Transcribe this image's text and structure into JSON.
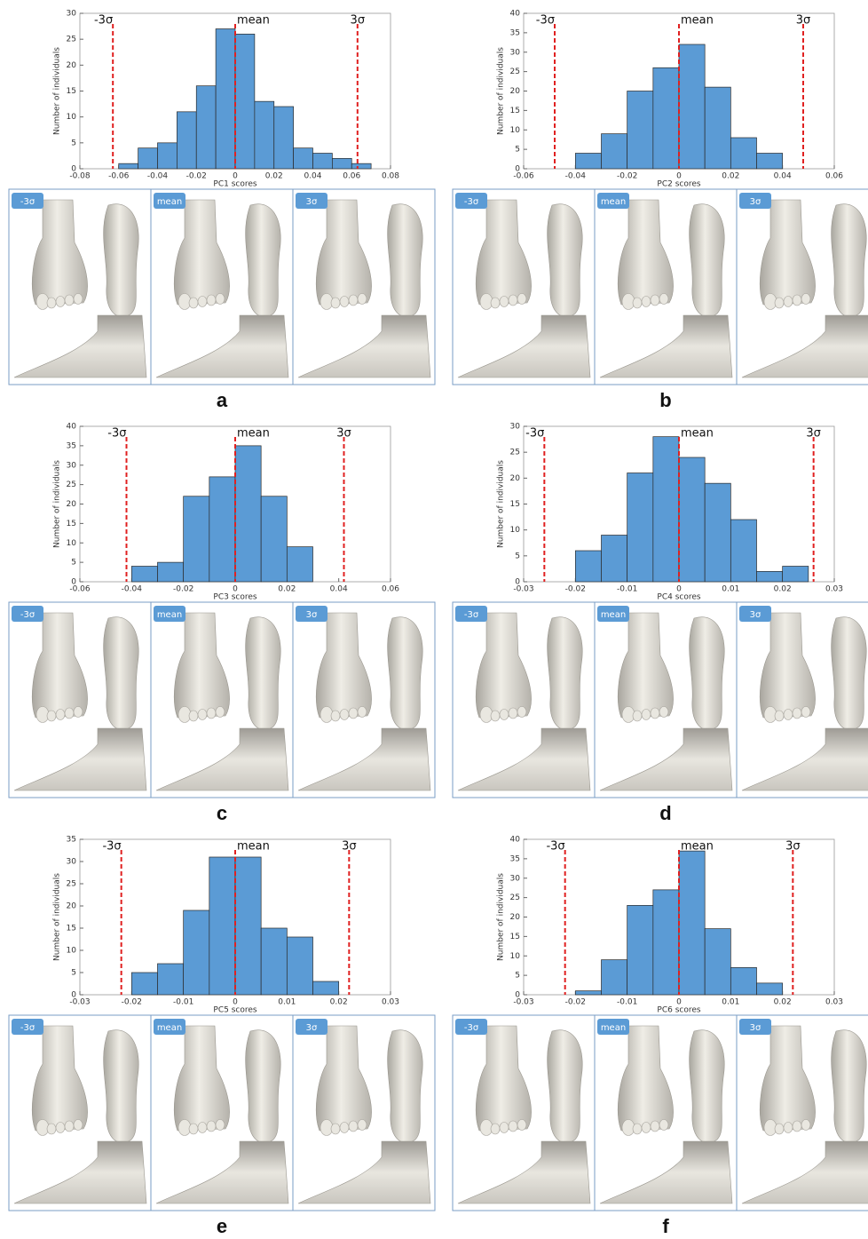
{
  "chart_data": [
    {
      "type": "histogram",
      "panel": "a",
      "x_label": "PC1 scores",
      "y_label": "Number of individuals",
      "color": "#5b9bd5",
      "bins": [
        -0.06,
        -0.05,
        -0.04,
        -0.03,
        -0.02,
        -0.01,
        0,
        0.01,
        0.02,
        0.03,
        0.04,
        0.05,
        0.06,
        0.07
      ],
      "values": [
        1,
        4,
        5,
        11,
        16,
        27,
        26,
        13,
        12,
        4,
        3,
        2,
        1
      ],
      "xlim": [
        -0.08,
        0.08
      ],
      "xticks": [
        -0.08,
        -0.06,
        -0.04,
        -0.02,
        0,
        0.02,
        0.04,
        0.06,
        0.08
      ],
      "ylim": [
        0,
        30
      ],
      "yticks": [
        0,
        5,
        10,
        15,
        20,
        25,
        30
      ],
      "vlines": [
        {
          "x": -0.063,
          "label": "-3σ"
        },
        {
          "x": 0,
          "label": "mean"
        },
        {
          "x": 0.063,
          "label": "3σ"
        }
      ],
      "shape_labels": [
        "-3σ",
        "mean",
        "3σ"
      ]
    },
    {
      "type": "histogram",
      "panel": "b",
      "x_label": "PC2 scores",
      "y_label": "Number of individuals",
      "color": "#5b9bd5",
      "bins": [
        -0.04,
        -0.03,
        -0.02,
        -0.01,
        0,
        0.01,
        0.02,
        0.03,
        0.04
      ],
      "values": [
        4,
        9,
        20,
        26,
        32,
        21,
        8,
        4
      ],
      "xlim": [
        -0.06,
        0.06
      ],
      "xticks": [
        -0.06,
        -0.04,
        -0.02,
        0,
        0.02,
        0.04,
        0.06
      ],
      "ylim": [
        0,
        40
      ],
      "yticks": [
        0,
        5,
        10,
        15,
        20,
        25,
        30,
        35,
        40
      ],
      "vlines": [
        {
          "x": -0.048,
          "label": "-3σ"
        },
        {
          "x": 0,
          "label": "mean"
        },
        {
          "x": 0.048,
          "label": "3σ"
        }
      ],
      "shape_labels": [
        "-3σ",
        "mean",
        "3σ"
      ]
    },
    {
      "type": "histogram",
      "panel": "c",
      "x_label": "PC3 scores",
      "y_label": "Number of individuals",
      "color": "#5b9bd5",
      "bins": [
        -0.04,
        -0.03,
        -0.02,
        -0.01,
        0,
        0.01,
        0.02,
        0.03
      ],
      "values": [
        4,
        5,
        22,
        27,
        35,
        22,
        9
      ],
      "xlim": [
        -0.06,
        0.06
      ],
      "xticks": [
        -0.06,
        -0.04,
        -0.02,
        0,
        0.02,
        0.04,
        0.06
      ],
      "ylim": [
        0,
        40
      ],
      "yticks": [
        0,
        5,
        10,
        15,
        20,
        25,
        30,
        35,
        40
      ],
      "vlines": [
        {
          "x": -0.042,
          "label": "-3σ"
        },
        {
          "x": 0,
          "label": "mean"
        },
        {
          "x": 0.042,
          "label": "3σ"
        }
      ],
      "shape_labels": [
        "-3σ",
        "mean",
        "3σ"
      ]
    },
    {
      "type": "histogram",
      "panel": "d",
      "x_label": "PC4 scores",
      "y_label": "Number of individuals",
      "color": "#5b9bd5",
      "bins": [
        -0.02,
        -0.015,
        -0.01,
        -0.005,
        0,
        0.005,
        0.01,
        0.015,
        0.02,
        0.025
      ],
      "values": [
        6,
        9,
        21,
        28,
        24,
        19,
        12,
        2,
        3
      ],
      "xlim": [
        -0.03,
        0.03
      ],
      "xticks": [
        -0.03,
        -0.02,
        -0.01,
        0,
        0.01,
        0.02,
        0.03
      ],
      "ylim": [
        0,
        30
      ],
      "yticks": [
        0,
        5,
        10,
        15,
        20,
        25,
        30
      ],
      "vlines": [
        {
          "x": -0.026,
          "label": "-3σ"
        },
        {
          "x": 0,
          "label": "mean"
        },
        {
          "x": 0.026,
          "label": "3σ"
        }
      ],
      "shape_labels": [
        "-3σ",
        "mean",
        "3σ"
      ]
    },
    {
      "type": "histogram",
      "panel": "e",
      "x_label": "PC5 scores",
      "y_label": "Number of individuals",
      "color": "#5b9bd5",
      "bins": [
        -0.02,
        -0.015,
        -0.01,
        -0.005,
        0,
        0.005,
        0.01,
        0.015,
        0.02
      ],
      "values": [
        5,
        7,
        19,
        31,
        31,
        15,
        13,
        3
      ],
      "xlim": [
        -0.03,
        0.03
      ],
      "xticks": [
        -0.03,
        -0.02,
        -0.01,
        0,
        0.01,
        0.02,
        0.03
      ],
      "ylim": [
        0,
        35
      ],
      "yticks": [
        0,
        5,
        10,
        15,
        20,
        25,
        30,
        35
      ],
      "vlines": [
        {
          "x": -0.022,
          "label": "-3σ"
        },
        {
          "x": 0,
          "label": "mean"
        },
        {
          "x": 0.022,
          "label": "3σ"
        }
      ],
      "shape_labels": [
        "-3σ",
        "mean",
        "3σ"
      ]
    },
    {
      "type": "histogram",
      "panel": "f",
      "x_label": "PC6 scores",
      "y_label": "Number of individuals",
      "color": "#5b9bd5",
      "bins": [
        -0.02,
        -0.015,
        -0.01,
        -0.005,
        0,
        0.005,
        0.01,
        0.015,
        0.02
      ],
      "values": [
        1,
        9,
        23,
        27,
        37,
        17,
        7,
        3
      ],
      "xlim": [
        -0.03,
        0.03
      ],
      "xticks": [
        -0.03,
        -0.02,
        -0.01,
        0,
        0.01,
        0.02,
        0.03
      ],
      "ylim": [
        0,
        40
      ],
      "yticks": [
        0,
        5,
        10,
        15,
        20,
        25,
        30,
        35,
        40
      ],
      "vlines": [
        {
          "x": -0.022,
          "label": "-3σ"
        },
        {
          "x": 0,
          "label": "mean"
        },
        {
          "x": 0.022,
          "label": "3σ"
        }
      ],
      "shape_labels": [
        "-3σ",
        "mean",
        "3σ"
      ]
    }
  ]
}
